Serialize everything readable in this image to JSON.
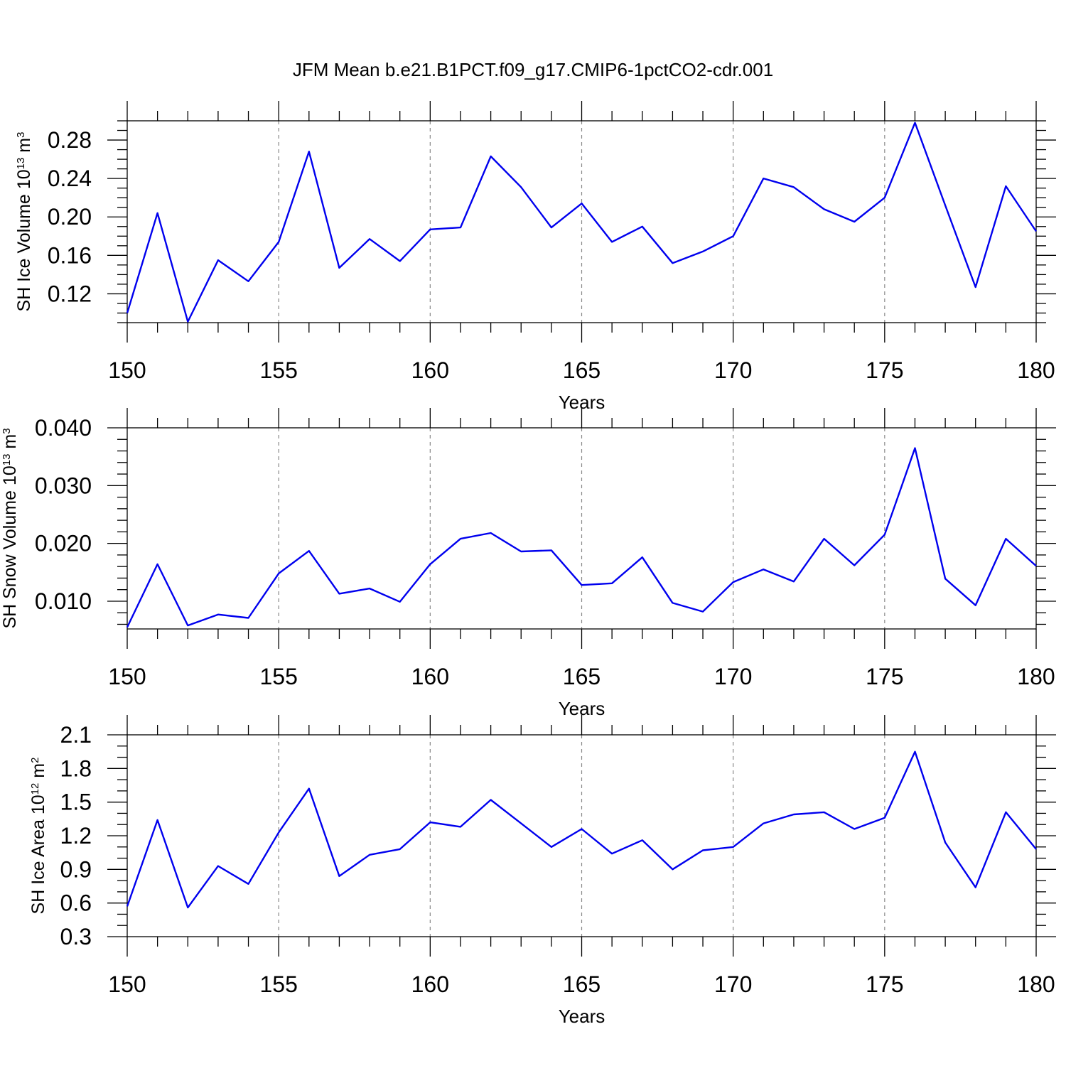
{
  "chart_data": {
    "type": "line",
    "title": "JFM Mean b.e21.B1PCT.f09_g17.CMIP6-1pctCO2-cdr.001",
    "line_color": "#0000ee",
    "panels": [
      {
        "ylabel": "SH Ice Volume 10",
        "ylabel_exp": "13",
        "ylabel_unit": " m",
        "ylabel_unit_exp": "3",
        "xlabel": "Years",
        "xlim": [
          150,
          180
        ],
        "ylim": [
          0.09,
          0.3
        ],
        "xticks": [
          150,
          155,
          160,
          165,
          170,
          175,
          180
        ],
        "yticks": [
          0.12,
          0.16,
          0.2,
          0.24,
          0.28
        ],
        "ytick_labels": [
          "0.12",
          "0.16",
          "0.20",
          "0.24",
          "0.28"
        ],
        "yminor_step": 0.01,
        "grid_x": true,
        "x": [
          150,
          151,
          152,
          153,
          154,
          155,
          156,
          157,
          158,
          159,
          160,
          161,
          162,
          163,
          164,
          165,
          166,
          167,
          168,
          169,
          170,
          171,
          172,
          173,
          174,
          175,
          176,
          177,
          178,
          179,
          180
        ],
        "values": [
          0.1,
          0.204,
          0.091,
          0.155,
          0.133,
          0.174,
          0.268,
          0.147,
          0.177,
          0.154,
          0.187,
          0.189,
          0.263,
          0.231,
          0.189,
          0.214,
          0.174,
          0.19,
          0.152,
          0.164,
          0.18,
          0.24,
          0.231,
          0.208,
          0.195,
          0.22,
          0.298,
          0.212,
          0.127,
          0.232,
          0.185
        ]
      },
      {
        "ylabel": "SH Snow Volume 10",
        "ylabel_exp": "13",
        "ylabel_unit": " m",
        "ylabel_unit_exp": "3",
        "xlabel": "Years",
        "xlim": [
          150,
          180
        ],
        "ylim": [
          0.0052,
          0.04
        ],
        "xticks": [
          150,
          155,
          160,
          165,
          170,
          175,
          180
        ],
        "yticks": [
          0.01,
          0.02,
          0.03,
          0.04
        ],
        "ytick_labels": [
          "0.010",
          "0.020",
          "0.030",
          "0.040"
        ],
        "yminor_step": 0.002,
        "grid_x": true,
        "x": [
          150,
          151,
          152,
          153,
          154,
          155,
          156,
          157,
          158,
          159,
          160,
          161,
          162,
          163,
          164,
          165,
          166,
          167,
          168,
          169,
          170,
          171,
          172,
          173,
          174,
          175,
          176,
          177,
          178,
          179,
          180
        ],
        "values": [
          0.0055,
          0.0164,
          0.0058,
          0.0077,
          0.0071,
          0.0148,
          0.0187,
          0.0113,
          0.0122,
          0.0099,
          0.0164,
          0.0208,
          0.0218,
          0.0186,
          0.0188,
          0.0128,
          0.0131,
          0.0176,
          0.0097,
          0.0082,
          0.0133,
          0.0155,
          0.0134,
          0.0208,
          0.0162,
          0.0215,
          0.0365,
          0.0139,
          0.0093,
          0.0208,
          0.0161
        ]
      },
      {
        "ylabel": "SH Ice Area 10",
        "ylabel_exp": "12",
        "ylabel_unit": " m",
        "ylabel_unit_exp": "2",
        "xlabel": "Years",
        "xlim": [
          150,
          180
        ],
        "ylim": [
          0.3,
          2.1
        ],
        "xticks": [
          150,
          155,
          160,
          165,
          170,
          175,
          180
        ],
        "yticks": [
          0.3,
          0.6,
          0.9,
          1.2,
          1.5,
          1.8,
          2.1
        ],
        "ytick_labels": [
          "0.3",
          "0.6",
          "0.9",
          "1.2",
          "1.5",
          "1.8",
          "2.1"
        ],
        "yminor_step": 0.1,
        "grid_x": true,
        "x": [
          150,
          151,
          152,
          153,
          154,
          155,
          156,
          157,
          158,
          159,
          160,
          161,
          162,
          163,
          164,
          165,
          166,
          167,
          168,
          169,
          170,
          171,
          172,
          173,
          174,
          175,
          176,
          177,
          178,
          179,
          180
        ],
        "values": [
          0.57,
          1.34,
          0.56,
          0.93,
          0.77,
          1.23,
          1.62,
          0.84,
          1.03,
          1.08,
          1.32,
          1.28,
          1.52,
          1.31,
          1.1,
          1.26,
          1.04,
          1.16,
          0.9,
          1.07,
          1.1,
          1.31,
          1.39,
          1.41,
          1.26,
          1.36,
          1.95,
          1.14,
          0.74,
          1.41,
          1.08
        ]
      }
    ]
  }
}
